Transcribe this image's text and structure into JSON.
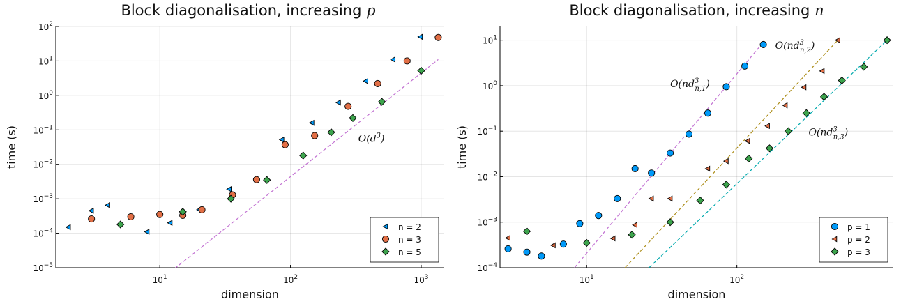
{
  "chart_data": [
    {
      "type": "scatter",
      "title": "Block diagonalisation, increasing p",
      "title_prefix": "Block diagonalisation, increasing ",
      "title_var": "p",
      "xlabel": "dimension",
      "ylabel": "time (s)",
      "xscale": "log",
      "yscale": "log",
      "xlim": [
        1.6,
        1500
      ],
      "ylim": [
        1e-05,
        100
      ],
      "grid": true,
      "legend_position": "bottom-right",
      "xticks": [
        {
          "value": 10,
          "base": "10",
          "exp": "1"
        },
        {
          "value": 100,
          "base": "10",
          "exp": "2"
        },
        {
          "value": 1000,
          "base": "10",
          "exp": "3"
        }
      ],
      "yticks": [
        {
          "value": 1e-05,
          "base": "10",
          "exp": "−5"
        },
        {
          "value": 0.0001,
          "base": "10",
          "exp": "−4"
        },
        {
          "value": 0.001,
          "base": "10",
          "exp": "−3"
        },
        {
          "value": 0.01,
          "base": "10",
          "exp": "−2"
        },
        {
          "value": 0.1,
          "base": "10",
          "exp": "−1"
        },
        {
          "value": 1,
          "base": "10",
          "exp": "0"
        },
        {
          "value": 10,
          "base": "10",
          "exp": "1"
        },
        {
          "value": 100,
          "base": "10",
          "exp": "2"
        }
      ],
      "series": [
        {
          "name": "n = 2",
          "marker": "triangle-left",
          "color": "#009af9",
          "x": [
            2,
            3,
            4,
            8,
            12,
            20,
            34,
            86,
            146,
            233,
            377,
            610,
            987
          ],
          "y": [
            0.00015,
            0.00045,
            0.00065,
            0.00011,
            0.0002,
            0.00048,
            0.0019,
            0.052,
            0.16,
            0.62,
            2.6,
            11,
            50
          ]
        },
        {
          "name": "n = 3",
          "marker": "circle",
          "color": "#e26f46",
          "x": [
            3,
            6,
            10,
            15,
            21,
            36,
            55,
            91,
            153,
            276,
            465,
            780,
            1350
          ],
          "y": [
            0.00026,
            0.0003,
            0.00035,
            0.00033,
            0.00048,
            0.0013,
            0.0036,
            0.037,
            0.068,
            0.48,
            2.2,
            10,
            48
          ]
        },
        {
          "name": "n = 5",
          "marker": "diamond",
          "color": "#3da44d",
          "x": [
            5,
            15,
            35,
            66,
            125,
            205,
            300,
            500,
            1000
          ],
          "y": [
            0.00018,
            0.00042,
            0.001,
            0.0035,
            0.018,
            0.085,
            0.22,
            0.65,
            5.2
          ]
        }
      ],
      "reference_lines": [
        {
          "color": "#c271d2",
          "x": [
            13,
            1350
          ],
          "y": [
            9.5e-06,
            11
          ],
          "label_text": "O(d",
          "label_sup": "3",
          "label_close": ")",
          "label_at": [
            330,
            0.045
          ]
        }
      ]
    },
    {
      "type": "scatter",
      "title": "Block diagonalisation, increasing n",
      "title_prefix": "Block diagonalisation, increasing ",
      "title_var": "n",
      "xlabel": "dimension",
      "ylabel": "time (s)",
      "xscale": "log",
      "yscale": "log",
      "xlim": [
        2.65,
        1100
      ],
      "ylim": [
        0.0001,
        20
      ],
      "grid": true,
      "legend_position": "bottom-right",
      "xticks": [
        {
          "value": 10,
          "base": "10",
          "exp": "1"
        },
        {
          "value": 100,
          "base": "10",
          "exp": "2"
        }
      ],
      "yticks": [
        {
          "value": 0.0001,
          "base": "10",
          "exp": "−4"
        },
        {
          "value": 0.001,
          "base": "10",
          "exp": "−3"
        },
        {
          "value": 0.01,
          "base": "10",
          "exp": "−2"
        },
        {
          "value": 0.1,
          "base": "10",
          "exp": "−1"
        },
        {
          "value": 1,
          "base": "10",
          "exp": "0"
        },
        {
          "value": 10,
          "base": "10",
          "exp": "1"
        }
      ],
      "series": [
        {
          "name": "p = 1",
          "marker": "circle",
          "color": "#009af9",
          "x": [
            3,
            4,
            5,
            7,
            9,
            12,
            16,
            21,
            27,
            36,
            48,
            64,
            85,
            113,
            150
          ],
          "y": [
            0.00026,
            0.00022,
            0.00018,
            0.00033,
            0.00093,
            0.0014,
            0.0033,
            0.015,
            0.012,
            0.033,
            0.086,
            0.25,
            0.95,
            2.7,
            8
          ]
        },
        {
          "name": "p = 2",
          "marker": "triangle-left",
          "color": "#e26f46",
          "x": [
            3,
            6,
            15,
            21,
            27,
            36,
            64,
            85,
            118,
            160,
            210,
            280,
            370,
            470
          ],
          "y": [
            0.00045,
            0.00031,
            0.00044,
            0.00087,
            0.0033,
            0.0033,
            0.015,
            0.022,
            0.061,
            0.13,
            0.37,
            0.92,
            2.1,
            10
          ]
        },
        {
          "name": "p = 3",
          "marker": "diamond",
          "color": "#3da44d",
          "x": [
            4,
            10,
            20,
            36,
            57,
            85,
            120,
            165,
            220,
            290,
            380,
            500,
            700,
            1000
          ],
          "y": [
            0.00063,
            0.00035,
            0.00053,
            0.001,
            0.003,
            0.0067,
            0.025,
            0.042,
            0.1,
            0.25,
            0.57,
            1.3,
            2.6,
            10
          ]
        }
      ],
      "reference_lines": [
        {
          "color": "#c271d2",
          "x": [
            8.3,
            150
          ],
          "y": [
            0.0001,
            9
          ],
          "label_text": "O(nd",
          "label_sup": "3",
          "label_sub": "n,1",
          "label_close": ")",
          "label_at": [
            36,
            0.93
          ]
        },
        {
          "color": "#ac8d18",
          "x": [
            18,
            470
          ],
          "y": [
            0.0001,
            10
          ],
          "label_text": "O(nd",
          "label_sup": "3",
          "label_sub": "n,2",
          "label_close": ")",
          "label_at": [
            180,
            6.5
          ]
        },
        {
          "color": "#00a9ad",
          "x": [
            26,
            1000
          ],
          "y": [
            0.0001,
            10
          ],
          "label_text": "O(nd",
          "label_sup": "3",
          "label_sub": "n,3",
          "label_close": ")",
          "label_at": [
            300,
            0.08
          ]
        }
      ]
    }
  ]
}
